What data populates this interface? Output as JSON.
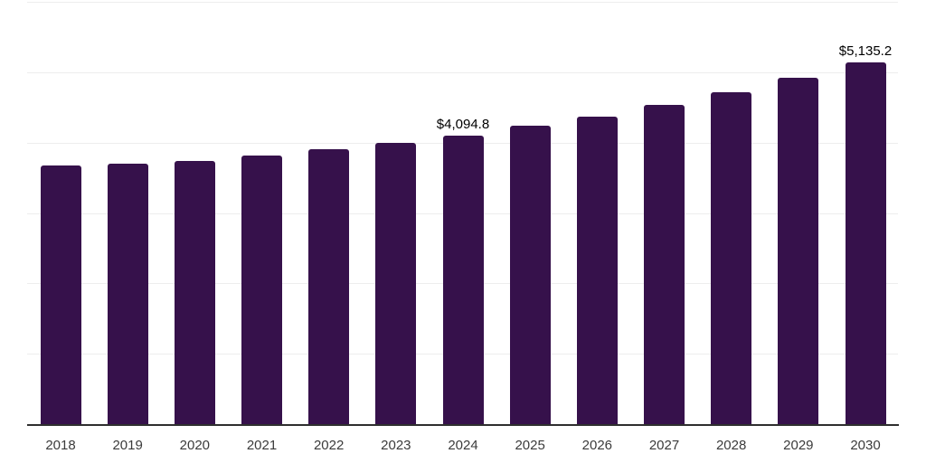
{
  "chart_data": {
    "type": "bar",
    "title": "",
    "xlabel": "",
    "ylabel": "",
    "categories": [
      "2018",
      "2019",
      "2020",
      "2021",
      "2022",
      "2023",
      "2024",
      "2025",
      "2026",
      "2027",
      "2028",
      "2029",
      "2030"
    ],
    "values": [
      3675,
      3695,
      3740,
      3810,
      3910,
      3995,
      4094.8,
      4240,
      4370,
      4540,
      4715,
      4925,
      5135.2
    ],
    "value_labels": [
      "",
      "",
      "",
      "",
      "",
      "",
      "$4,094.8",
      "",
      "",
      "",
      "",
      "",
      "$5,135.2"
    ],
    "ylim": [
      0,
      6000
    ],
    "gridline_step": 1000,
    "grid": "horizontal",
    "legend_position": "none",
    "colors": {
      "bar": "#36114B",
      "gridline": "#ededed",
      "axis_line": "#2f2f2f",
      "tick_label": "#3b3b3b",
      "value_label": "#000000",
      "background": "#ffffff"
    }
  }
}
